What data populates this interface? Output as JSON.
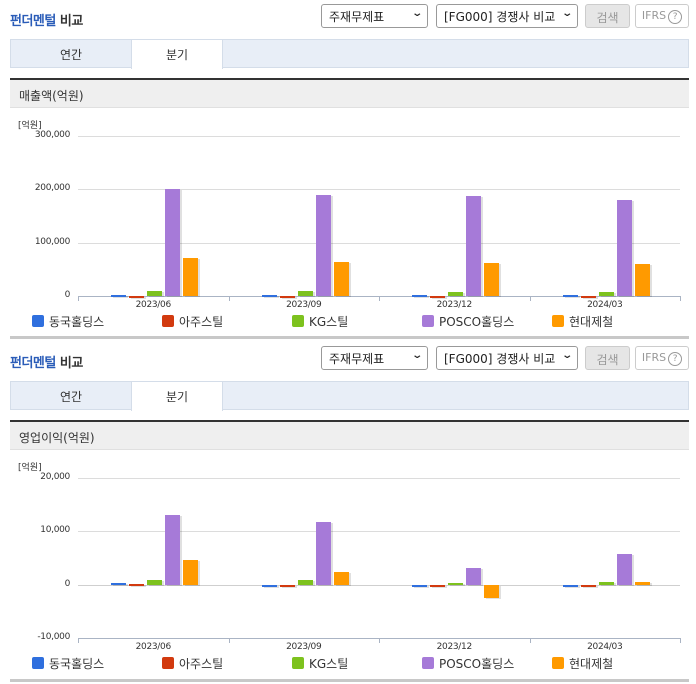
{
  "sections": [
    {
      "title_blue": "펀더멘털",
      "title_dark": " 비교",
      "select1": "주재무제표",
      "select2": "[FG000] 경쟁사 비교",
      "search_label": "검색",
      "ifrs_label": "IFRS",
      "help_glyph": "?",
      "tabs": [
        {
          "label": "연간"
        },
        {
          "label": "분기"
        }
      ],
      "active_tab": "분기",
      "subheader": "매출액(억원)"
    },
    {
      "title_blue": "펀더멘털",
      "title_dark": " 비교",
      "select1": "주재무제표",
      "select2": "[FG000] 경쟁사 비교",
      "search_label": "검색",
      "ifrs_label": "IFRS",
      "help_glyph": "?",
      "tabs": [
        {
          "label": "연간"
        },
        {
          "label": "분기"
        }
      ],
      "active_tab": "분기",
      "subheader": "영업이익(억원)"
    }
  ],
  "legend": [
    {
      "name": "동국홀딩스",
      "color": "#2f6fde"
    },
    {
      "name": "아주스틸",
      "color": "#d23a0f"
    },
    {
      "name": "KG스틸",
      "color": "#7dc21e"
    },
    {
      "name": "POSCO홀딩스",
      "color": "#a67ad8"
    },
    {
      "name": "현대제철",
      "color": "#ff9a00"
    }
  ],
  "chart_data": [
    {
      "type": "bar",
      "title": "매출액(억원)",
      "ylabel": "[억원]",
      "xlabel": "",
      "categories": [
        "2023/06",
        "2023/09",
        "2023/12",
        "2024/03"
      ],
      "ylim": [
        0,
        300000
      ],
      "yticks": [
        "300,000",
        "200,000",
        "100,000",
        "0"
      ],
      "ytick_values": [
        300000,
        200000,
        100000,
        0
      ],
      "grid": true,
      "legend_position": "bottom",
      "series": [
        {
          "name": "동국홀딩스",
          "values": [
            2000,
            2000,
            2000,
            2000
          ]
        },
        {
          "name": "아주스틸",
          "values": [
            500,
            500,
            500,
            500
          ]
        },
        {
          "name": "KG스틸",
          "values": [
            9000,
            9000,
            7000,
            7000
          ]
        },
        {
          "name": "POSCO홀딩스",
          "values": [
            200000,
            189000,
            187000,
            180000
          ]
        },
        {
          "name": "현대제철",
          "values": [
            71000,
            64000,
            62000,
            60000
          ]
        }
      ]
    },
    {
      "type": "bar",
      "title": "영업이익(억원)",
      "ylabel": "[억원]",
      "xlabel": "",
      "categories": [
        "2023/06",
        "2023/09",
        "2023/12",
        "2024/03"
      ],
      "ylim": [
        -10000,
        20000
      ],
      "yticks": [
        "20,000",
        "10,000",
        "0",
        "-10,000"
      ],
      "ytick_values": [
        20000,
        10000,
        0,
        -10000
      ],
      "grid": true,
      "legend_position": "bottom",
      "series": [
        {
          "name": "동국홀딩스",
          "values": [
            300,
            -200,
            0,
            -200
          ]
        },
        {
          "name": "아주스틸",
          "values": [
            100,
            -200,
            -300,
            0
          ]
        },
        {
          "name": "KG스틸",
          "values": [
            800,
            800,
            300,
            500
          ]
        },
        {
          "name": "POSCO홀딩스",
          "values": [
            13000,
            11800,
            3100,
            5800
          ]
        },
        {
          "name": "현대제철",
          "values": [
            4600,
            2300,
            -2500,
            500
          ]
        }
      ]
    }
  ]
}
